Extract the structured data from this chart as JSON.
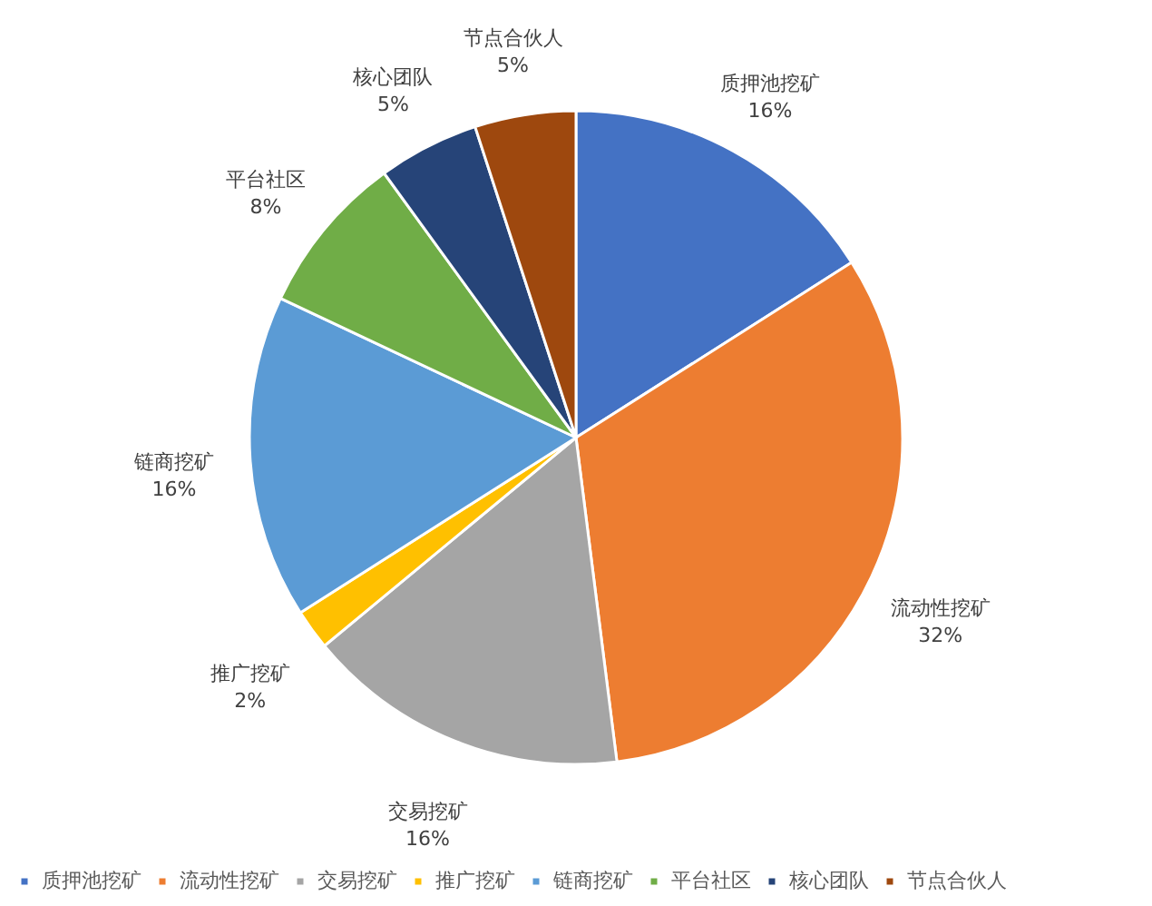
{
  "chart_data": {
    "type": "pie",
    "categories": [
      "质押池挖矿",
      "流动性挖矿",
      "交易挖矿",
      "推广挖矿",
      "链商挖矿",
      "平台社区",
      "核心团队",
      "节点合伙人"
    ],
    "values": [
      16,
      32,
      16,
      2,
      16,
      8,
      5,
      5
    ],
    "value_labels": [
      "16%",
      "32%",
      "16%",
      "2%",
      "16%",
      "8%",
      "5%",
      "5%"
    ],
    "colors": [
      "#4472c4",
      "#ed7d31",
      "#a5a5a5",
      "#ffc000",
      "#5b9bd5",
      "#70ad47",
      "#264478",
      "#9e480e"
    ],
    "legend": "bottom"
  }
}
